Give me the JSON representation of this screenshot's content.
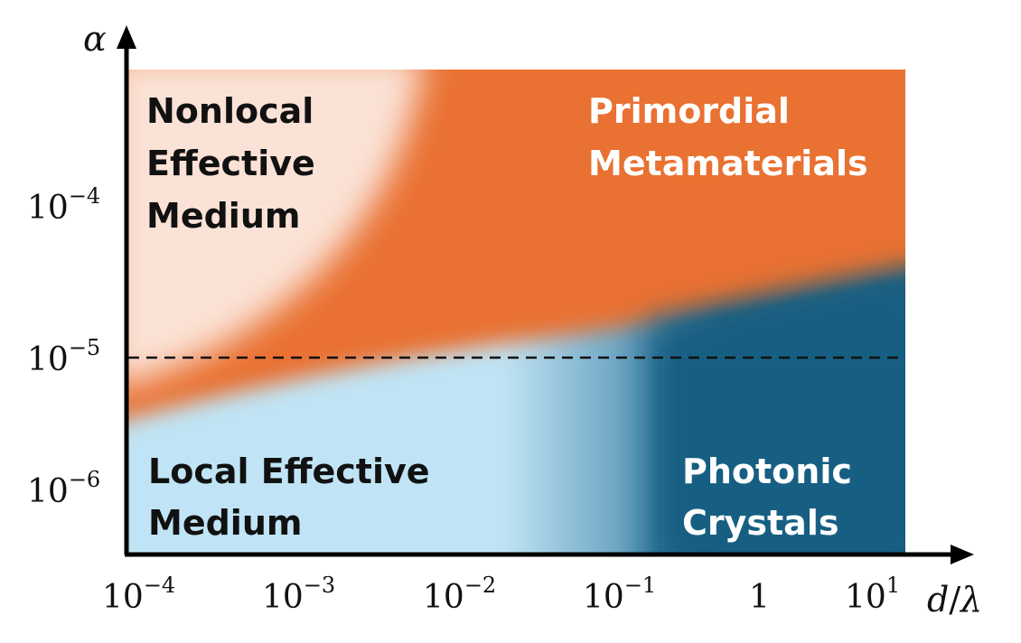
{
  "diagram": {
    "type": "regime-map",
    "axes": {
      "x": {
        "title_var": "d",
        "title_sep": "/",
        "title_var2": "λ",
        "ticks": [
          {
            "base": "10",
            "exp": "−4"
          },
          {
            "base": "10",
            "exp": "−3"
          },
          {
            "base": "10",
            "exp": "−2"
          },
          {
            "base": "10",
            "exp": "−1"
          },
          {
            "base": "1",
            "exp": ""
          },
          {
            "base": "10",
            "exp": "1"
          }
        ]
      },
      "y": {
        "title": "α",
        "ticks": [
          {
            "base": "10",
            "exp": "−4"
          },
          {
            "base": "10",
            "exp": "−5"
          },
          {
            "base": "10",
            "exp": "−6"
          }
        ]
      }
    },
    "threshold_line": {
      "value": "10^-5",
      "style": "dashed"
    },
    "regions": {
      "nonlocal": {
        "lines": [
          "Nonlocal",
          "Effective",
          "Medium"
        ],
        "color": "#fbe2d6"
      },
      "primordial": {
        "lines": [
          "Primordial",
          "Metamaterials"
        ],
        "color": "#e97132"
      },
      "local": {
        "lines": [
          "Local Effective",
          "Medium"
        ],
        "color": "#c0e4f5"
      },
      "photonic": {
        "lines": [
          "Photonic",
          "Crystals"
        ],
        "color": "#155e82"
      }
    },
    "colors": {
      "axis": "#000000",
      "dark_text": "#111111",
      "light_text": "#ffffff"
    }
  }
}
